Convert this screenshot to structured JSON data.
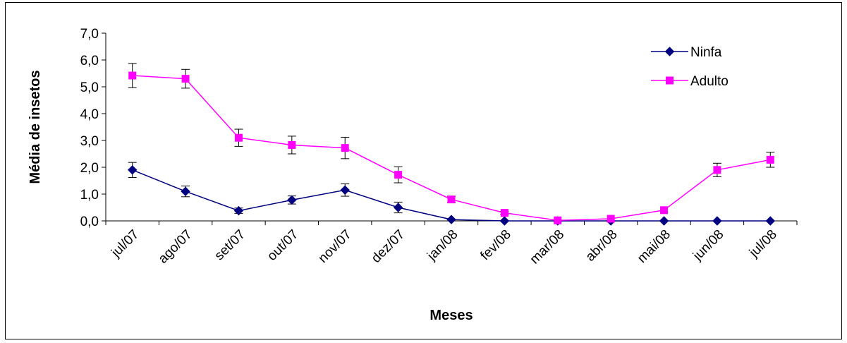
{
  "chart_data": {
    "type": "line",
    "title": "",
    "xlabel": "Meses",
    "ylabel": "Média de insetos",
    "ylim": [
      0,
      7
    ],
    "ystep": 1,
    "ytick_labels": [
      "0,0",
      "1,0",
      "2,0",
      "3,0",
      "4,0",
      "5,0",
      "6,0",
      "7,0"
    ],
    "categories": [
      "jul/07",
      "ago/07",
      "set/07",
      "out/07",
      "nov/07",
      "dez/07",
      "jan/08",
      "fev/08",
      "mar/08",
      "abr/08",
      "mai/08",
      "jun/08",
      "jul/08"
    ],
    "grid": false,
    "legend_position": "top-right",
    "series": [
      {
        "name": "Ninfa",
        "color": "#000080",
        "marker": "diamond",
        "values": [
          1.9,
          1.1,
          0.38,
          0.78,
          1.15,
          0.5,
          0.05,
          0.0,
          0.0,
          0.0,
          0.0,
          0.0,
          0.0
        ],
        "errors": [
          0.28,
          0.2,
          0.1,
          0.15,
          0.23,
          0.2,
          0.0,
          0.0,
          0.0,
          0.0,
          0.0,
          0.0,
          0.0
        ]
      },
      {
        "name": "Adulto",
        "color": "#FF00FF",
        "marker": "square",
        "values": [
          5.42,
          5.3,
          3.1,
          2.83,
          2.72,
          1.72,
          0.8,
          0.3,
          0.02,
          0.08,
          0.4,
          1.9,
          2.28
        ],
        "errors": [
          0.45,
          0.35,
          0.32,
          0.33,
          0.4,
          0.3,
          0.12,
          0.05,
          0.0,
          0.0,
          0.0,
          0.25,
          0.28
        ]
      }
    ]
  }
}
